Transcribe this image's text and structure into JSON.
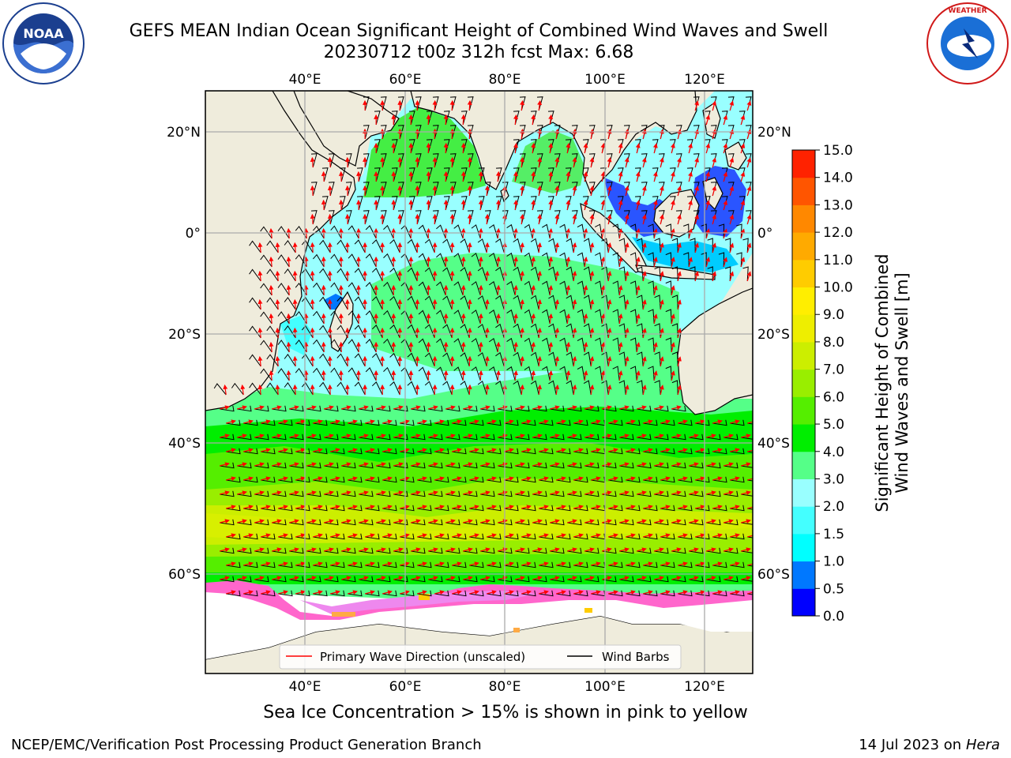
{
  "header": {
    "title_line1": "GEFS MEAN Indian Ocean Significant Height of Combined Wind Waves and Swell",
    "title_line2": "20230712 t00z 312h fcst   Max: 6.68"
  },
  "logos": {
    "left": {
      "name": "NOAA",
      "ring_text": "NATIONAL OCEANIC AND ATMOSPHERIC ADMINISTRATION · U.S. DEPARTMENT OF COMMERCE"
    },
    "right": {
      "name": "NATIONAL WEATHER SERVICE"
    }
  },
  "map": {
    "lon_labels": [
      "40°E",
      "60°E",
      "80°E",
      "100°E",
      "120°E"
    ],
    "lat_labels": [
      "20°N",
      "0°",
      "20°S",
      "40°S",
      "60°S"
    ],
    "lon_range": [
      20,
      129
    ],
    "lat_range": [
      -73.5,
      27
    ],
    "land_color": "#efecdc",
    "ice_color": "#ffffff"
  },
  "legend": {
    "wave_dir_label": "Primary Wave Direction (unscaled)",
    "wave_dir_color": "#ff0000",
    "wind_barbs_label": "Wind Barbs",
    "wind_barbs_color": "#000000"
  },
  "colorbar": {
    "title_line1": "Significant Height of Combined",
    "title_line2": "Wind Waves and Swell [m]",
    "ticks": [
      "0.0",
      "0.5",
      "1.0",
      "1.5",
      "2.0",
      "3.0",
      "4.0",
      "5.0",
      "6.0",
      "7.0",
      "8.0",
      "9.0",
      "10.0",
      "11.0",
      "12.0",
      "13.0",
      "14.0",
      "15.0"
    ],
    "colors": [
      "#0000ff",
      "#0078ff",
      "#00ffff",
      "#44ffff",
      "#99ffff",
      "#55ff88",
      "#00ee00",
      "#55ee00",
      "#99ee00",
      "#ccee00",
      "#eeee00",
      "#ffee00",
      "#ffcc00",
      "#ffaa00",
      "#ff8800",
      "#ff5500",
      "#ff2200"
    ]
  },
  "footer": {
    "note": "Sea Ice Concentration > 15% is shown in pink to yellow",
    "left": "NCEP/EMC/Verification Post Processing Product Generation Branch",
    "right_prefix": "14 Jul 2023 on",
    "right_host": "Hera"
  }
}
